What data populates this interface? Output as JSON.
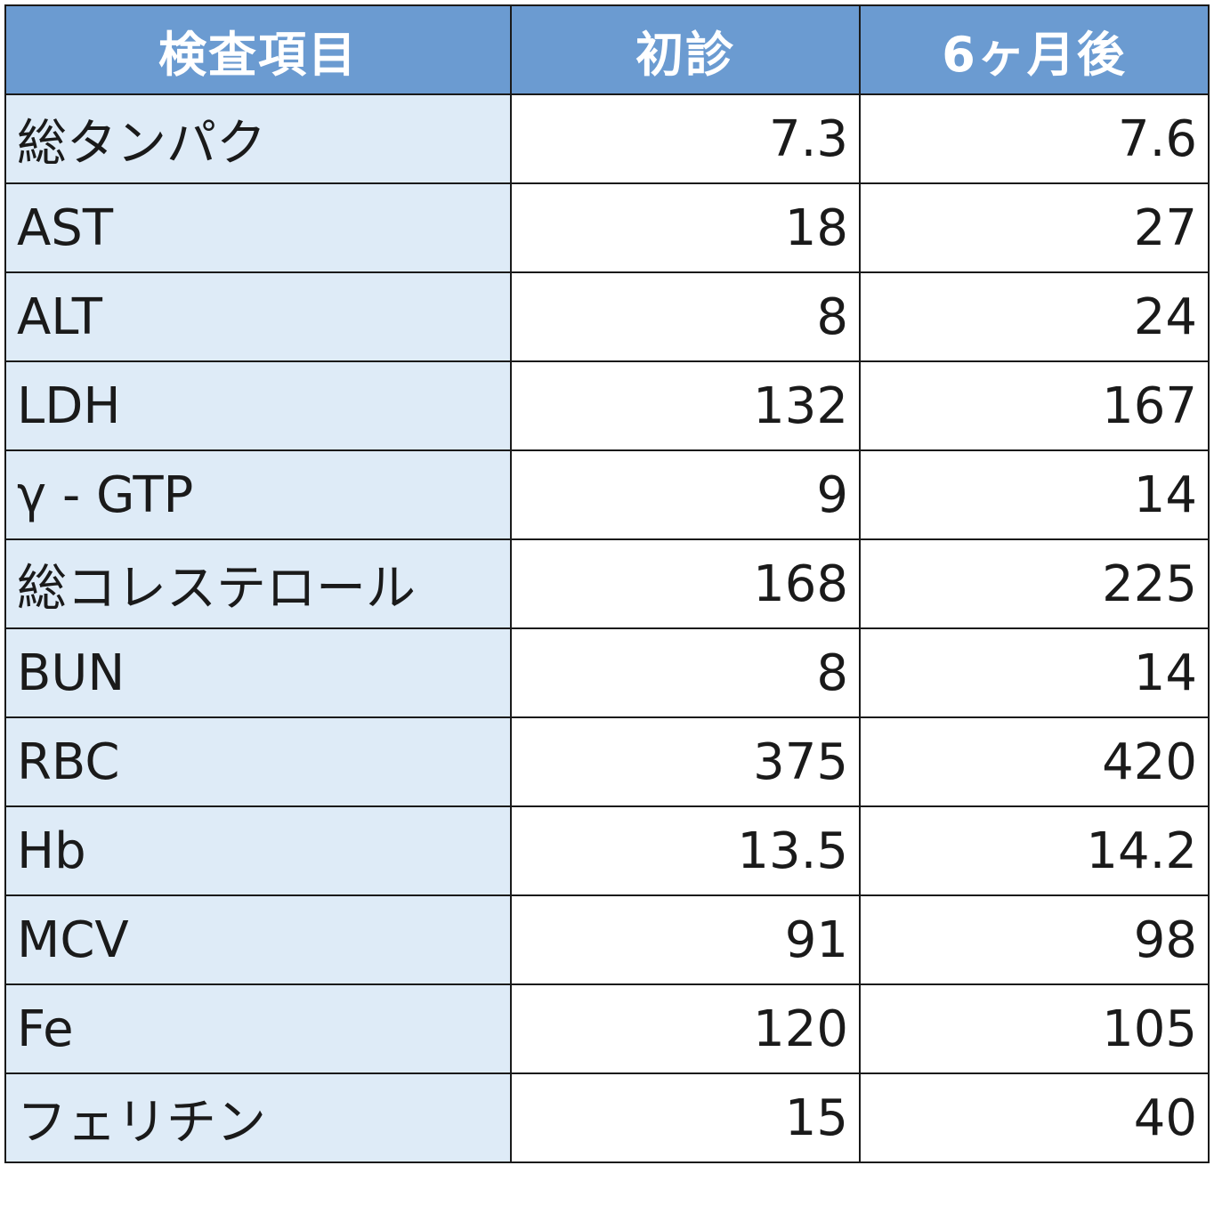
{
  "table": {
    "headers": [
      "検査項目",
      "初診",
      "6ヶ月後"
    ],
    "rows": [
      {
        "item": "総タンパク",
        "initial": "7.3",
        "after6": "7.6"
      },
      {
        "item": "AST",
        "initial": "18",
        "after6": "27"
      },
      {
        "item": "ALT",
        "initial": "8",
        "after6": "24"
      },
      {
        "item": "LDH",
        "initial": "132",
        "after6": "167"
      },
      {
        "item": "γ - GTP",
        "initial": "9",
        "after6": "14"
      },
      {
        "item": "総コレステロール",
        "initial": "168",
        "after6": "225"
      },
      {
        "item": "BUN",
        "initial": "8",
        "after6": "14"
      },
      {
        "item": "RBC",
        "initial": "375",
        "after6": "420"
      },
      {
        "item": "Hb",
        "initial": "13.5",
        "after6": "14.2"
      },
      {
        "item": "MCV",
        "initial": "91",
        "after6": "98"
      },
      {
        "item": "Fe",
        "initial": "120",
        "after6": "105"
      },
      {
        "item": "フェリチン",
        "initial": "15",
        "after6": "40"
      }
    ]
  },
  "colors": {
    "header_bg": "#6b9bd1",
    "header_text": "#ffffff",
    "item_bg": "#deebf7",
    "value_bg": "#ffffff",
    "border": "#1a1a1a"
  }
}
